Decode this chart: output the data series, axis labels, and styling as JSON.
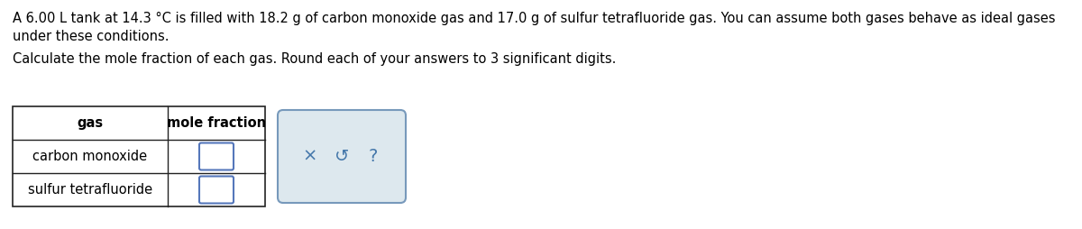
{
  "title_line1": "A 6.00 L tank at 14.3 °C is filled with 18.2 g of carbon monoxide gas and 17.0 g of sulfur tetrafluoride gas. You can assume both gases behave as ideal gases",
  "title_line2": "under these conditions.",
  "subtitle": "Calculate the mole fraction of each gas. Round each of your answers to 3 significant digits.",
  "col_headers": [
    "gas",
    "mole fraction"
  ],
  "rows": [
    "carbon monoxide",
    "sulfur tetrafluoride"
  ],
  "bg_color": "#ffffff",
  "font_color": "#000000",
  "font_size_body": 10.5,
  "font_size_header": 10.5,
  "feedback_symbols_x": "×",
  "feedback_symbols_redo": "↺",
  "feedback_symbols_q": "?",
  "table_border_color": "#222222",
  "input_box_edge_color": "#5577bb",
  "input_box_face_color": "#ffffff",
  "feedback_box_edge_color": "#7799bb",
  "feedback_box_face_color": "#dde8ee",
  "feedback_icon_color": "#4477aa"
}
